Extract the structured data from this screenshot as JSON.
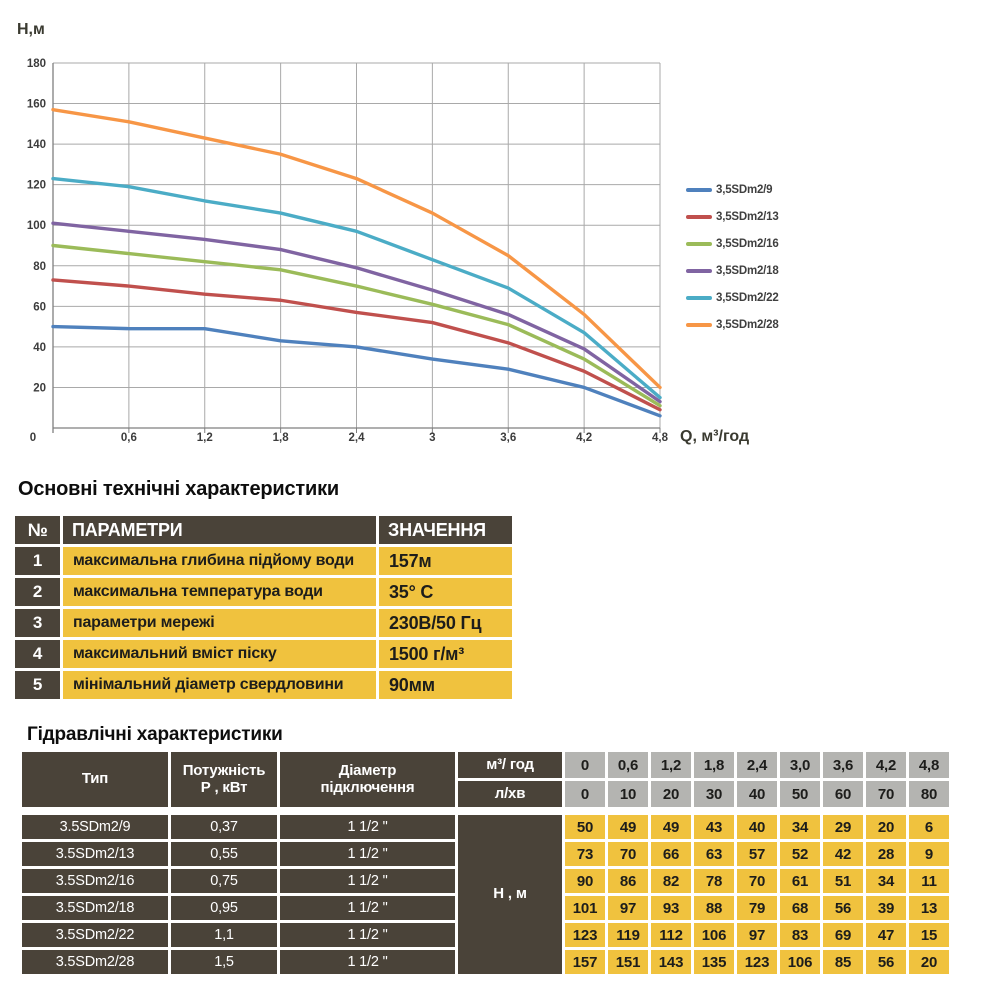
{
  "chart_data": {
    "type": "line",
    "title": "",
    "xlabel": "Q,  м³/год",
    "ylabel": "Н,м",
    "x": [
      0,
      0.6,
      1.2,
      1.8,
      2.4,
      3.0,
      3.6,
      4.2,
      4.8
    ],
    "xlim": [
      0,
      4.8
    ],
    "ylim": [
      0,
      180
    ],
    "x_tick_labels": [
      "0",
      "0,6",
      "1,2",
      "1,8",
      "2,4",
      "3",
      "3,6",
      "4,2",
      "4,8"
    ],
    "y_tick_step": 20,
    "y_tick_labels": [
      "20",
      "40",
      "60",
      "80",
      "100",
      "120",
      "140",
      "160",
      "180"
    ],
    "grid": true,
    "legend_position": "right",
    "grid_color": "#a9a9a9",
    "axis_color": "#7f7f7f",
    "series": [
      {
        "name": "3,5SDm2/9",
        "color": "#4F81BD",
        "values": [
          50,
          49,
          49,
          43,
          40,
          34,
          29,
          20,
          6
        ]
      },
      {
        "name": "3,5SDm2/13",
        "color": "#C0504D",
        "values": [
          73,
          70,
          66,
          63,
          57,
          52,
          42,
          28,
          9
        ]
      },
      {
        "name": "3,5SDm2/16",
        "color": "#9BBB59",
        "values": [
          90,
          86,
          82,
          78,
          70,
          61,
          51,
          34,
          11
        ]
      },
      {
        "name": "3,5SDm2/18",
        "color": "#8064A2",
        "values": [
          101,
          97,
          93,
          88,
          79,
          68,
          56,
          39,
          13
        ]
      },
      {
        "name": "3,5SDm2/22",
        "color": "#4BACC6",
        "values": [
          123,
          119,
          112,
          106,
          97,
          83,
          69,
          47,
          15
        ]
      },
      {
        "name": "3,5SDm2/28",
        "color": "#F79646",
        "values": [
          157,
          151,
          143,
          135,
          123,
          106,
          85,
          56,
          20
        ]
      }
    ]
  },
  "tech_table": {
    "title": "Основні технічні характеристики",
    "headers": [
      "№",
      "ПАРАМЕТРИ",
      "ЗНАЧЕННЯ"
    ],
    "rows": [
      {
        "num": "1",
        "param": "максимальна глибина підйому води",
        "value": "157м"
      },
      {
        "num": "2",
        "param": "максимальна температура води",
        "value": "35° С"
      },
      {
        "num": "3",
        "param": "параметри мережі",
        "value": "230В/50 Гц"
      },
      {
        "num": "4",
        "param": "максимальний вміст піску",
        "value": "1500 г/м³"
      },
      {
        "num": "5",
        "param": "мінімальний діаметр свердловини",
        "value": "90мм"
      }
    ]
  },
  "hydraulic_table": {
    "title": "Гідравлічні характеристики",
    "col_headers": {
      "type": "Тип",
      "power_line1": "Потужність",
      "power_line2": "Р , кВт",
      "diameter_line1": "Діаметр",
      "diameter_line2": "підключення",
      "flow_m3": "м³/ год",
      "flow_lmin": "л/хв",
      "head_label": "Н , м"
    },
    "flow_m3_values": [
      "0",
      "0,6",
      "1,2",
      "1,8",
      "2,4",
      "3,0",
      "3,6",
      "4,2",
      "4,8"
    ],
    "flow_lmin_values": [
      "0",
      "10",
      "20",
      "30",
      "40",
      "50",
      "60",
      "70",
      "80"
    ],
    "rows": [
      {
        "type": "3.5SDm2/9",
        "power": "0,37",
        "diameter": "1 1/2 \"",
        "heads": [
          50,
          49,
          49,
          43,
          40,
          34,
          29,
          20,
          6
        ]
      },
      {
        "type": "3.5SDm2/13",
        "power": "0,55",
        "diameter": "1 1/2 \"",
        "heads": [
          73,
          70,
          66,
          63,
          57,
          52,
          42,
          28,
          9
        ]
      },
      {
        "type": "3.5SDm2/16",
        "power": "0,75",
        "diameter": "1 1/2 \"",
        "heads": [
          90,
          86,
          82,
          78,
          70,
          61,
          51,
          34,
          11
        ]
      },
      {
        "type": "3.5SDm2/18",
        "power": "0,95",
        "diameter": "1 1/2 \"",
        "heads": [
          101,
          97,
          93,
          88,
          79,
          68,
          56,
          39,
          13
        ]
      },
      {
        "type": "3.5SDm2/22",
        "power": "1,1",
        "diameter": "1 1/2 \"",
        "heads": [
          123,
          119,
          112,
          106,
          97,
          83,
          69,
          47,
          15
        ]
      },
      {
        "type": "3.5SDm2/28",
        "power": "1,5",
        "diameter": "1 1/2 \"",
        "heads": [
          157,
          151,
          143,
          135,
          123,
          106,
          85,
          56,
          20
        ]
      }
    ]
  },
  "colors": {
    "dark_cell": "#4a4339",
    "yellow_cell": "#f0c23e",
    "gray_cell": "#b4b4b1"
  }
}
